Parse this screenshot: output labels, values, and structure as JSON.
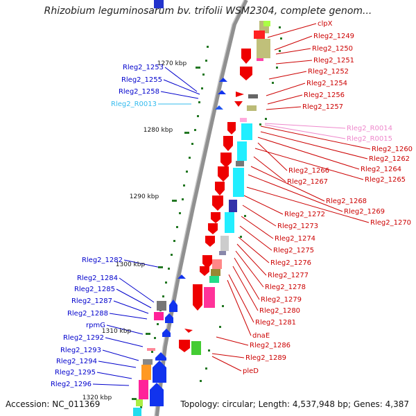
{
  "title": "Rhizobium leguminosarum bv. trifolii WSM2304, complete genom...",
  "accession": "Accession: NC_011369",
  "topology": "Topology: circular; Length: 4,537,948 bp; Genes: 4,387",
  "colors": {
    "forward_label": "#0000cc",
    "reverse_label": "#cc0000",
    "rna_forward_label": "#33bbee",
    "rna_reverse_label": "#ee88cc",
    "backbone": "#888888",
    "tick": "#227722"
  },
  "scale_labels": [
    "1270 kbp",
    "1280 kbp",
    "1290 kbp",
    "1300 kbp",
    "1310 kbp",
    "1320 kbp"
  ],
  "left_labels": [
    {
      "text": "Rleg2_1253",
      "kind": "forward"
    },
    {
      "text": "Rleg2_1255",
      "kind": "forward"
    },
    {
      "text": "Rleg2_1258",
      "kind": "forward"
    },
    {
      "text": "Rleg2_R0013",
      "kind": "rna_forward"
    },
    {
      "text": "Rleg2_1282",
      "kind": "forward"
    },
    {
      "text": "Rleg2_1284",
      "kind": "forward"
    },
    {
      "text": "Rleg2_1285",
      "kind": "forward"
    },
    {
      "text": "Rleg2_1287",
      "kind": "forward"
    },
    {
      "text": "Rleg2_1288",
      "kind": "forward"
    },
    {
      "text": "rpmG",
      "kind": "forward"
    },
    {
      "text": "Rleg2_1292",
      "kind": "forward"
    },
    {
      "text": "Rleg2_1293",
      "kind": "forward"
    },
    {
      "text": "Rleg2_1294",
      "kind": "forward"
    },
    {
      "text": "Rleg2_1295",
      "kind": "forward"
    },
    {
      "text": "Rleg2_1296",
      "kind": "forward"
    }
  ],
  "right_labels": [
    {
      "text": "clpX",
      "kind": "reverse"
    },
    {
      "text": "Rleg2_1249",
      "kind": "reverse"
    },
    {
      "text": "Rleg2_1250",
      "kind": "reverse"
    },
    {
      "text": "Rleg2_1251",
      "kind": "reverse"
    },
    {
      "text": "Rleg2_1252",
      "kind": "reverse"
    },
    {
      "text": "Rleg2_1254",
      "kind": "reverse"
    },
    {
      "text": "Rleg2_1256",
      "kind": "reverse"
    },
    {
      "text": "Rleg2_1257",
      "kind": "reverse"
    },
    {
      "text": "Rleg2_R0014",
      "kind": "rna_reverse"
    },
    {
      "text": "Rleg2_R0015",
      "kind": "rna_reverse"
    },
    {
      "text": "Rleg2_1260",
      "kind": "reverse"
    },
    {
      "text": "Rleg2_1262",
      "kind": "reverse"
    },
    {
      "text": "Rleg2_1264",
      "kind": "reverse"
    },
    {
      "text": "Rleg2_1266",
      "kind": "reverse"
    },
    {
      "text": "Rleg2_1265",
      "kind": "reverse"
    },
    {
      "text": "Rleg2_1267",
      "kind": "reverse"
    },
    {
      "text": "Rleg2_1268",
      "kind": "reverse"
    },
    {
      "text": "Rleg2_1269",
      "kind": "reverse"
    },
    {
      "text": "Rleg2_1270",
      "kind": "reverse"
    },
    {
      "text": "Rleg2_1272",
      "kind": "reverse"
    },
    {
      "text": "Rleg2_1273",
      "kind": "reverse"
    },
    {
      "text": "Rleg2_1274",
      "kind": "reverse"
    },
    {
      "text": "Rleg2_1275",
      "kind": "reverse"
    },
    {
      "text": "Rleg2_1276",
      "kind": "reverse"
    },
    {
      "text": "Rleg2_1277",
      "kind": "reverse"
    },
    {
      "text": "Rleg2_1278",
      "kind": "reverse"
    },
    {
      "text": "Rleg2_1279",
      "kind": "reverse"
    },
    {
      "text": "Rleg2_1280",
      "kind": "reverse"
    },
    {
      "text": "Rleg2_1281",
      "kind": "reverse"
    },
    {
      "text": "dnaE",
      "kind": "reverse"
    },
    {
      "text": "Rleg2_1286",
      "kind": "reverse"
    },
    {
      "text": "Rleg2_1289",
      "kind": "reverse"
    },
    {
      "text": "pleD",
      "kind": "reverse"
    }
  ]
}
